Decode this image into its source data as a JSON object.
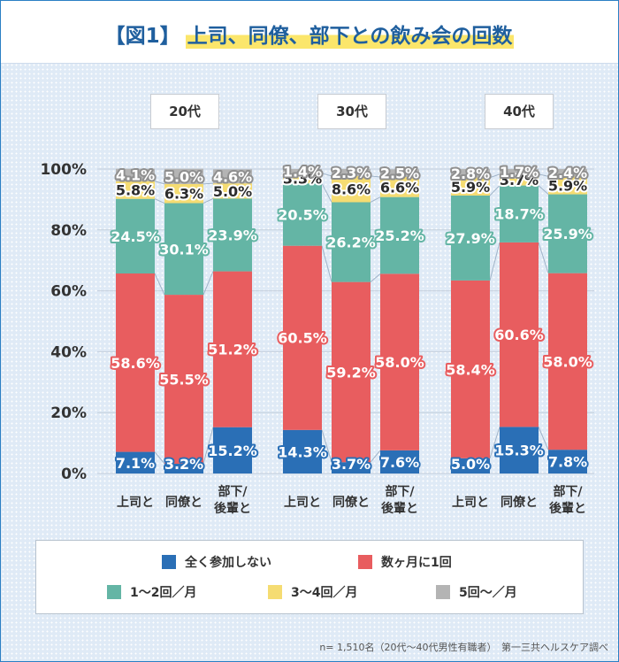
{
  "title": {
    "prefix": "【図1】",
    "main": "上司、同僚、部下との飲み会の回数"
  },
  "groups": [
    "20代",
    "30代",
    "40代"
  ],
  "footnote": "n= 1,510名（20代〜40代男性有職者）　第一三共ヘルスケア調べ",
  "colors": {
    "none": "#2a6fb6",
    "monthly_few": "#e85d5f",
    "one_two": "#64b5a5",
    "three_four": "#f5dc72",
    "five_plus": "#b4b4b4"
  },
  "legend": [
    {
      "label": "全く参加しない",
      "color_key": "none"
    },
    {
      "label": "数ヶ月に1回",
      "color_key": "monthly_few"
    },
    {
      "label": "1〜2回／月",
      "color_key": "one_two"
    },
    {
      "label": "3〜4回／月",
      "color_key": "three_four"
    },
    {
      "label": "5回〜／月",
      "color_key": "five_plus"
    }
  ],
  "chart_data": {
    "type": "bar",
    "stacked": true,
    "percent": true,
    "ylim": [
      0,
      100
    ],
    "yticks": [
      "0%",
      "20%",
      "40%",
      "60%",
      "80%",
      "100%"
    ],
    "categories": [
      {
        "group": "20代",
        "label": [
          "上司と"
        ]
      },
      {
        "group": "20代",
        "label": [
          "同僚と"
        ]
      },
      {
        "group": "20代",
        "label": [
          "部下/",
          "後輩と"
        ]
      },
      {
        "group": "30代",
        "label": [
          "上司と"
        ]
      },
      {
        "group": "30代",
        "label": [
          "同僚と"
        ]
      },
      {
        "group": "30代",
        "label": [
          "部下/",
          "後輩と"
        ]
      },
      {
        "group": "40代",
        "label": [
          "上司と"
        ]
      },
      {
        "group": "40代",
        "label": [
          "同僚と"
        ]
      },
      {
        "group": "40代",
        "label": [
          "部下/",
          "後輩と"
        ]
      }
    ],
    "series": [
      {
        "name": "全く参加しない",
        "color_key": "none",
        "values": [
          7.1,
          3.2,
          15.2,
          14.3,
          3.7,
          7.6,
          5.0,
          15.3,
          7.8
        ]
      },
      {
        "name": "数ヶ月に1回",
        "color_key": "monthly_few",
        "values": [
          58.6,
          55.5,
          51.2,
          60.5,
          59.2,
          58.0,
          58.4,
          60.6,
          58.0
        ]
      },
      {
        "name": "1〜2回／月",
        "color_key": "one_two",
        "values": [
          24.5,
          30.1,
          23.9,
          20.5,
          26.2,
          25.2,
          27.9,
          18.7,
          25.9
        ]
      },
      {
        "name": "3〜4回／月",
        "color_key": "three_four",
        "values": [
          5.8,
          6.3,
          5.0,
          3.3,
          8.6,
          6.6,
          5.9,
          3.7,
          5.9
        ]
      },
      {
        "name": "5回〜／月",
        "color_key": "five_plus",
        "values": [
          4.1,
          5.0,
          4.6,
          1.4,
          2.3,
          2.5,
          2.8,
          1.7,
          2.4
        ]
      }
    ]
  }
}
